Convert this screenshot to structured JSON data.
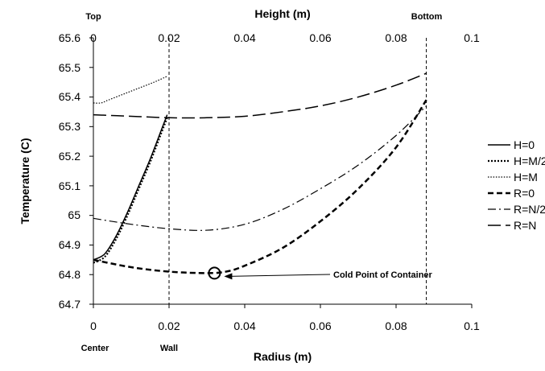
{
  "chart_data": {
    "type": "line",
    "y_axis": {
      "label": "Temperature (C)",
      "ylim": [
        64.7,
        65.6
      ],
      "ticks": [
        "64.7",
        "64.8",
        "64.9",
        "65",
        "65.1",
        "65.2",
        "65.3",
        "65.4",
        "65.5",
        "65.6"
      ],
      "tick_values": [
        64.7,
        64.8,
        64.9,
        65.0,
        65.1,
        65.2,
        65.3,
        65.4,
        65.5,
        65.6
      ]
    },
    "x_axis_bottom": {
      "label": "Radius (m)",
      "xlim": [
        0,
        0.1
      ],
      "ticks": [
        "0",
        "0.02",
        "0.04",
        "0.06",
        "0.08",
        "0.1"
      ],
      "tick_values": [
        0,
        0.02,
        0.04,
        0.06,
        0.08,
        0.1
      ],
      "edge_labels": [
        {
          "text": "Center",
          "at": 0
        },
        {
          "text": "Wall",
          "at": 0.02
        }
      ]
    },
    "x_axis_top": {
      "label": "Height (m)",
      "xlim": [
        0,
        0.1
      ],
      "ticks": [
        "0",
        "0.02",
        "0.04",
        "0.06",
        "0.08",
        "0.1"
      ],
      "tick_values": [
        0,
        0.02,
        0.04,
        0.06,
        0.08,
        0.1
      ],
      "edge_labels": [
        {
          "text": "Top",
          "at": 0
        },
        {
          "text": "Bottom",
          "at": 0.088
        }
      ]
    },
    "reference_lines_x": [
      0.02,
      0.088
    ],
    "series": [
      {
        "name": "H=0",
        "style": "solid",
        "width": 1.5,
        "x": [
          0,
          0.003,
          0.006,
          0.009,
          0.012,
          0.015,
          0.018,
          0.0195
        ],
        "y": [
          64.85,
          64.87,
          64.93,
          65.01,
          65.1,
          65.19,
          65.29,
          65.34
        ]
      },
      {
        "name": "H=M/2",
        "style": "dotted-heavy",
        "width": 2.2,
        "x": [
          0,
          0.003,
          0.006,
          0.009,
          0.012,
          0.015,
          0.018,
          0.0195
        ],
        "y": [
          64.84,
          64.86,
          64.92,
          65.0,
          65.09,
          65.18,
          65.28,
          65.33
        ]
      },
      {
        "name": "H=M",
        "style": "dotted",
        "width": 1.2,
        "x": [
          0,
          0.002,
          0.004,
          0.008,
          0.012,
          0.016,
          0.0195
        ],
        "y": [
          65.38,
          65.38,
          65.39,
          65.41,
          65.43,
          65.45,
          65.47
        ]
      },
      {
        "name": "R=0",
        "style": "heavy-dash",
        "width": 2.5,
        "x": [
          0,
          0.01,
          0.02,
          0.03,
          0.035,
          0.04,
          0.05,
          0.06,
          0.07,
          0.08,
          0.088
        ],
        "y": [
          64.85,
          64.825,
          64.81,
          64.805,
          64.81,
          64.83,
          64.89,
          64.98,
          65.09,
          65.23,
          65.39
        ]
      },
      {
        "name": "R=N/2",
        "style": "dash-dot",
        "width": 1.2,
        "x": [
          0,
          0.01,
          0.02,
          0.03,
          0.04,
          0.05,
          0.06,
          0.07,
          0.08,
          0.088
        ],
        "y": [
          64.99,
          64.97,
          64.955,
          64.95,
          64.97,
          65.02,
          65.09,
          65.17,
          65.27,
          65.37
        ]
      },
      {
        "name": "R=N",
        "style": "long-dash",
        "width": 1.5,
        "x": [
          0,
          0.01,
          0.02,
          0.03,
          0.04,
          0.05,
          0.06,
          0.07,
          0.08,
          0.088
        ],
        "y": [
          65.34,
          65.335,
          65.33,
          65.33,
          65.335,
          65.35,
          65.37,
          65.4,
          65.44,
          65.48
        ]
      }
    ],
    "annotations": [
      {
        "text": "Cold Point of Container",
        "x": 0.032,
        "y": 64.805,
        "marker": "circle",
        "arrow": true
      }
    ],
    "legend": "right"
  }
}
